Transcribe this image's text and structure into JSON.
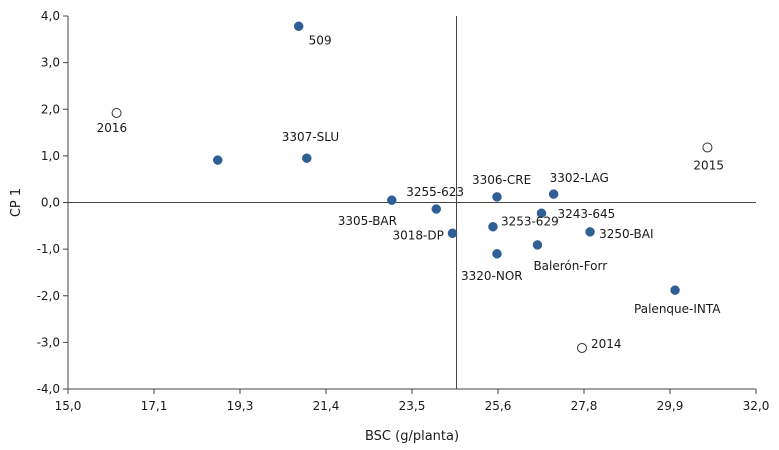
{
  "chart_data": {
    "type": "scatter",
    "title": "",
    "xlabel": "BSC (g/planta)",
    "ylabel": "CP 1",
    "xlim": [
      15.0,
      32.0
    ],
    "ylim": [
      -4.0,
      4.0
    ],
    "x_ticks": [
      "15,0",
      "17,1",
      "19,3",
      "21,4",
      "23,5",
      "25,6",
      "27,8",
      "29,9",
      "32,0"
    ],
    "x_tick_values": [
      15.0,
      17.125,
      19.25,
      21.375,
      23.5,
      25.625,
      27.75,
      29.875,
      32.0
    ],
    "y_ticks": [
      "4,0",
      "3,0",
      "2,0",
      "1,0",
      "0,0",
      "-1,0",
      "-2,0",
      "-3,0",
      "-4,0"
    ],
    "y_tick_values": [
      4,
      3,
      2,
      1,
      0,
      -1,
      -2,
      -3,
      -4
    ],
    "reference_lines": {
      "x": 24.6,
      "y": 0.0
    },
    "colors": {
      "filled": "#2f5f95",
      "hollow_stroke": "#333333",
      "axis": "#444444"
    },
    "points": [
      {
        "label": "509",
        "x": 20.7,
        "y": 3.78,
        "hollow": false
      },
      {
        "label": "2016",
        "x": 16.2,
        "y": 1.92,
        "hollow": true
      },
      {
        "label": "",
        "x": 18.7,
        "y": 0.91,
        "hollow": false
      },
      {
        "label": "3307-SLU",
        "x": 20.9,
        "y": 0.95,
        "hollow": false
      },
      {
        "label": "2015",
        "x": 30.8,
        "y": 1.18,
        "hollow": true
      },
      {
        "label": "3305-BAR",
        "x": 23.0,
        "y": 0.05,
        "hollow": false
      },
      {
        "label": "3255-623",
        "x": 24.1,
        "y": -0.14,
        "hollow": false
      },
      {
        "label": "3306-CRE",
        "x": 25.6,
        "y": 0.12,
        "hollow": false
      },
      {
        "label": "3302-LAG",
        "x": 27.0,
        "y": 0.18,
        "hollow": false
      },
      {
        "label": "3243-645",
        "x": 26.7,
        "y": -0.23,
        "hollow": false
      },
      {
        "label": "3018-DP",
        "x": 24.5,
        "y": -0.66,
        "hollow": false
      },
      {
        "label": "3253-629",
        "x": 25.5,
        "y": -0.52,
        "hollow": false
      },
      {
        "label": "3250-BAI",
        "x": 27.9,
        "y": -0.63,
        "hollow": false
      },
      {
        "label": "Balerón-Forr",
        "x": 26.6,
        "y": -0.91,
        "hollow": false
      },
      {
        "label": "3320-NOR",
        "x": 25.6,
        "y": -1.1,
        "hollow": false
      },
      {
        "label": "Palenque-INTA",
        "x": 30.0,
        "y": -1.88,
        "hollow": false
      },
      {
        "label": "2014",
        "x": 27.7,
        "y": -3.12,
        "hollow": true
      }
    ]
  }
}
